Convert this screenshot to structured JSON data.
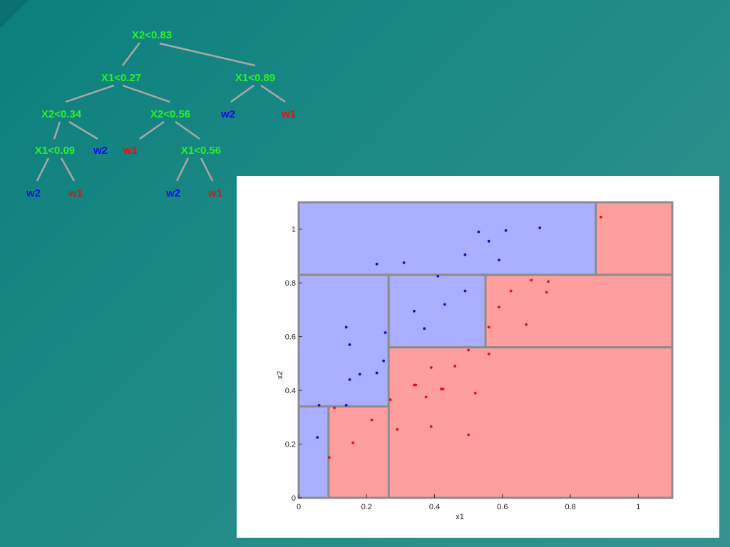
{
  "tree": {
    "nodes": [
      {
        "id": "n0",
        "label": "X2<0.83",
        "kind": "split"
      },
      {
        "id": "n1",
        "label": "X1<0.27",
        "kind": "split"
      },
      {
        "id": "n2",
        "label": "X1<0.89",
        "kind": "split"
      },
      {
        "id": "n3",
        "label": "X2<0.34",
        "kind": "split"
      },
      {
        "id": "n4",
        "label": "X2<0.56",
        "kind": "split"
      },
      {
        "id": "n5",
        "label": "w2",
        "kind": "w2"
      },
      {
        "id": "n6",
        "label": "w1",
        "kind": "w1"
      },
      {
        "id": "n7",
        "label": "X1<0.09",
        "kind": "split"
      },
      {
        "id": "n8",
        "label": "w2",
        "kind": "w2"
      },
      {
        "id": "n9",
        "label": "w1",
        "kind": "w1"
      },
      {
        "id": "n10",
        "label": "X1<0.56",
        "kind": "split"
      },
      {
        "id": "n11",
        "label": "w2",
        "kind": "w2"
      },
      {
        "id": "n12",
        "label": "w1",
        "kind": "w1"
      },
      {
        "id": "n13",
        "label": "w2",
        "kind": "w2"
      },
      {
        "id": "n14",
        "label": "w1",
        "kind": "w1"
      }
    ],
    "colors": {
      "split": "#2bef2b",
      "w2": "#1010e0",
      "w1": "#e01414",
      "edge": "#a8a8a8"
    }
  },
  "chart_data": {
    "type": "scatter",
    "xlabel": "x1",
    "ylabel": "x2",
    "xlim": [
      0,
      1.1
    ],
    "ylim": [
      0,
      1.1
    ],
    "xticks": [
      "0",
      "0.2",
      "0.4",
      "0.6",
      "0.8",
      "1"
    ],
    "yticks": [
      "0",
      "0.2",
      "0.4",
      "0.6",
      "0.8",
      "1"
    ],
    "regions": [
      {
        "class": "w2",
        "x": [
          0,
          0.875
        ],
        "y": [
          0.83,
          1.1
        ]
      },
      {
        "class": "w1",
        "x": [
          0.875,
          1.1
        ],
        "y": [
          0.83,
          1.1
        ]
      },
      {
        "class": "w2",
        "x": [
          0,
          0.265
        ],
        "y": [
          0.34,
          0.83
        ]
      },
      {
        "class": "w2",
        "x": [
          0.265,
          0.55
        ],
        "y": [
          0.56,
          0.83
        ]
      },
      {
        "class": "w1",
        "x": [
          0.55,
          1.1
        ],
        "y": [
          0.56,
          0.83
        ]
      },
      {
        "class": "w1",
        "x": [
          0.265,
          1.1
        ],
        "y": [
          0,
          0.56
        ]
      },
      {
        "class": "w2",
        "x": [
          0,
          0.088
        ],
        "y": [
          0,
          0.34
        ]
      },
      {
        "class": "w1",
        "x": [
          0.088,
          0.265
        ],
        "y": [
          0,
          0.34
        ]
      }
    ],
    "series": [
      {
        "class": "w2",
        "color": "#1010d0",
        "points": [
          [
            0.23,
            0.87
          ],
          [
            0.31,
            0.875
          ],
          [
            0.41,
            0.825
          ],
          [
            0.49,
            0.905
          ],
          [
            0.53,
            0.99
          ],
          [
            0.56,
            0.955
          ],
          [
            0.59,
            0.885
          ],
          [
            0.61,
            0.995
          ],
          [
            0.71,
            1.005
          ],
          [
            0.34,
            0.695
          ],
          [
            0.37,
            0.63
          ],
          [
            0.43,
            0.72
          ],
          [
            0.49,
            0.77
          ],
          [
            0.14,
            0.635
          ],
          [
            0.15,
            0.57
          ],
          [
            0.255,
            0.615
          ],
          [
            0.25,
            0.51
          ],
          [
            0.15,
            0.44
          ],
          [
            0.18,
            0.46
          ],
          [
            0.23,
            0.465
          ],
          [
            0.06,
            0.345
          ],
          [
            0.14,
            0.345
          ],
          [
            0.055,
            0.225
          ]
        ]
      },
      {
        "class": "w1",
        "color": "#e01010",
        "points": [
          [
            0.89,
            1.045
          ],
          [
            0.685,
            0.81
          ],
          [
            0.735,
            0.805
          ],
          [
            0.73,
            0.765
          ],
          [
            0.625,
            0.77
          ],
          [
            0.59,
            0.71
          ],
          [
            0.67,
            0.645
          ],
          [
            0.56,
            0.635
          ],
          [
            0.5,
            0.55
          ],
          [
            0.56,
            0.535
          ],
          [
            0.46,
            0.49
          ],
          [
            0.39,
            0.485
          ],
          [
            0.34,
            0.42
          ],
          [
            0.345,
            0.42
          ],
          [
            0.42,
            0.405
          ],
          [
            0.425,
            0.405
          ],
          [
            0.375,
            0.375
          ],
          [
            0.52,
            0.39
          ],
          [
            0.27,
            0.365
          ],
          [
            0.215,
            0.29
          ],
          [
            0.29,
            0.255
          ],
          [
            0.39,
            0.265
          ],
          [
            0.5,
            0.235
          ],
          [
            0.16,
            0.205
          ],
          [
            0.09,
            0.15
          ],
          [
            0.105,
            0.335
          ]
        ]
      }
    ],
    "region_colors": {
      "w2": "#aab0ff",
      "w1": "#ff9e9e",
      "border": "#8c8c8c"
    }
  }
}
